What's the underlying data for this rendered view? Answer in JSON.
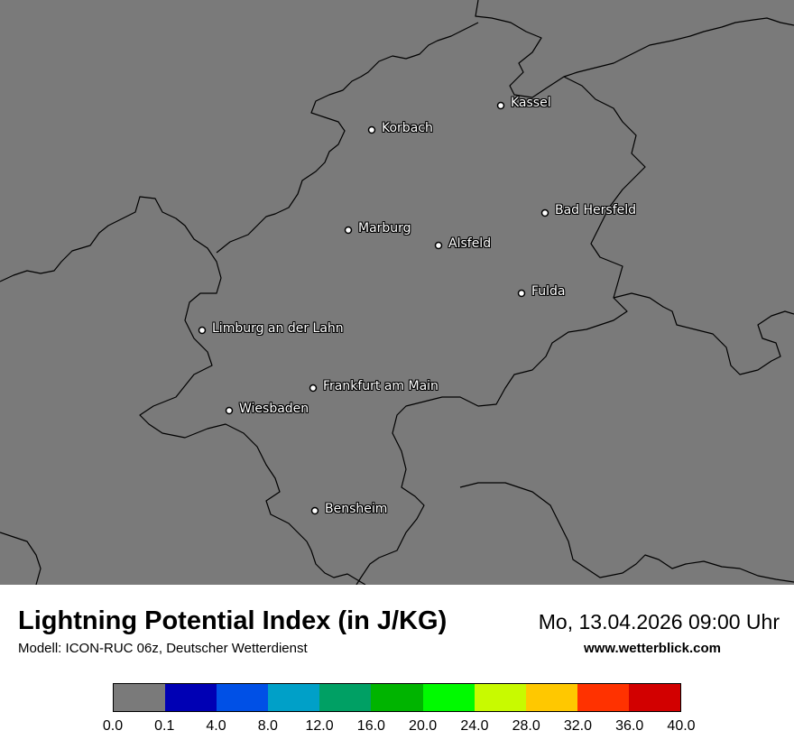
{
  "map": {
    "cities": [
      {
        "name": "Kassel"
      },
      {
        "name": "Korbach"
      },
      {
        "name": "Bad Hersfeld"
      },
      {
        "name": "Marburg"
      },
      {
        "name": "Alsfeld"
      },
      {
        "name": "Fulda"
      },
      {
        "name": "Limburg an der Lahn"
      },
      {
        "name": "Frankfurt am Main"
      },
      {
        "name": "Wiesbaden"
      },
      {
        "name": "Bensheim"
      }
    ],
    "background_color": "#7a7a7a",
    "border_color": "#000000"
  },
  "footer": {
    "title": "Lightning Potential Index (in J/KG)",
    "model": "Modell: ICON-RUC 06z, Deutscher Wetterdienst",
    "datetime": "Mo, 13.04.2026 09:00 Uhr",
    "website": "www.wetterblick.com"
  },
  "legend": {
    "colors": [
      "#7a7a7a",
      "#0000b4",
      "#0050e6",
      "#00a0c8",
      "#00a064",
      "#00b400",
      "#00fa00",
      "#c8fa00",
      "#ffc800",
      "#ff3200",
      "#d20000"
    ],
    "ticks": [
      "0.0",
      "0.1",
      "4.0",
      "8.0",
      "12.0",
      "16.0",
      "20.0",
      "24.0",
      "28.0",
      "32.0",
      "36.0",
      "40.0"
    ]
  }
}
